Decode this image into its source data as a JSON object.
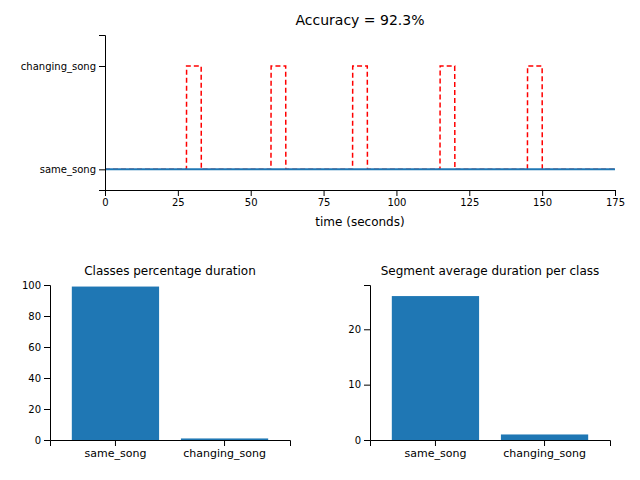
{
  "chart_data": [
    {
      "type": "line",
      "title": "Accuracy = 92.3%",
      "xlabel": "time (seconds)",
      "xlim": [
        0,
        175
      ],
      "xticks": [
        0,
        25,
        50,
        75,
        100,
        125,
        150,
        175
      ],
      "ylim": [
        -0.2,
        1.3
      ],
      "yticks": [
        {
          "value": 0,
          "label": "same_song"
        },
        {
          "value": 1,
          "label": "changing_song"
        }
      ],
      "series": [
        {
          "color": "#ff0000",
          "line_style": "dashed",
          "x": [
            0,
            27.95,
            28,
            33,
            33.05,
            56.95,
            57,
            62,
            62.05,
            84.95,
            85,
            90,
            90.05,
            114.95,
            115,
            120,
            120.05,
            144.95,
            145,
            150,
            150.05,
            175
          ],
          "values": [
            0,
            0,
            1,
            1,
            0,
            0,
            1,
            1,
            0,
            0,
            1,
            1,
            0,
            0,
            1,
            1,
            0,
            0,
            1,
            1,
            0,
            0
          ]
        },
        {
          "color": "#1f77b4",
          "line_style": "solid",
          "x": [
            0,
            175
          ],
          "values": [
            0,
            0
          ]
        }
      ]
    },
    {
      "type": "bar",
      "title": "Classes percentage duration",
      "categories": [
        "same_song",
        "changing_song"
      ],
      "values": [
        99.0,
        1.0
      ],
      "color": "#1f77b4",
      "ylim": [
        0,
        100
      ],
      "yticks": [
        0,
        20,
        40,
        60,
        80,
        100
      ]
    },
    {
      "type": "bar",
      "title": "Segment average duration per class",
      "categories": [
        "same_song",
        "changing_song"
      ],
      "values": [
        26.0,
        1.0
      ],
      "color": "#1f77b4",
      "ylim": [
        0,
        28
      ],
      "yticks": [
        0,
        10,
        20
      ]
    }
  ]
}
